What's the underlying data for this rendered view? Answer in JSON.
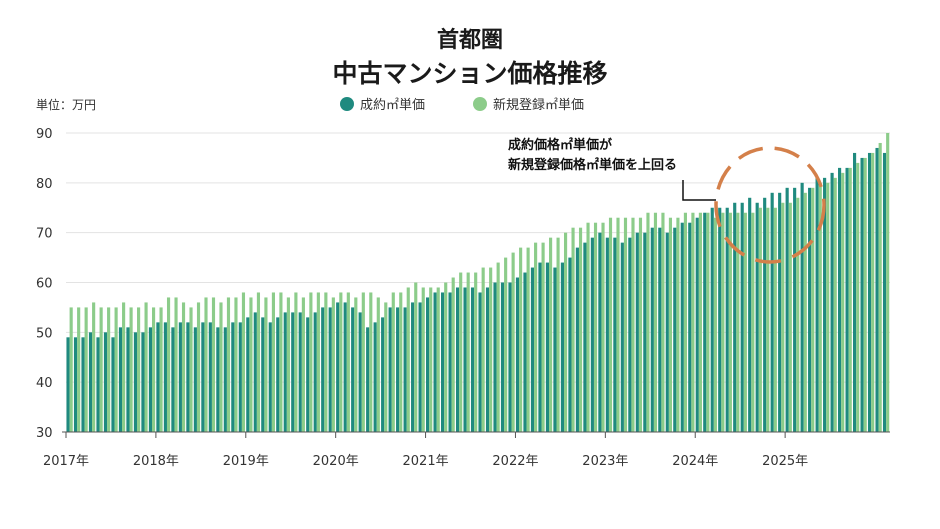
{
  "title_line1": "首都圏",
  "title_line2": "中古マンション価格推移",
  "unit_label": "単位：万円",
  "annotation": {
    "line1": "成約価格㎡単価が",
    "line2": "新規登録価格㎡単価を上回る"
  },
  "colors": {
    "contract": "#1f8a7f",
    "new": "#8ccc8a",
    "highlight": "#d4804a",
    "grid": "#e3e3e3"
  },
  "chart_data": {
    "type": "bar",
    "title": "首都圏 中古マンション価格推移",
    "ylabel": "単位：万円",
    "ylim": [
      30,
      90
    ],
    "yticks": [
      30,
      40,
      50,
      60,
      70,
      80,
      90
    ],
    "xticks": [
      "2017年",
      "2018年",
      "2019年",
      "2020年",
      "2021年",
      "2022年",
      "2023年",
      "2024年",
      "2025年"
    ],
    "x_start": "2017-01",
    "series": [
      {
        "name": "成約㎡単価",
        "values": [
          49,
          49,
          49,
          50,
          49,
          50,
          49,
          51,
          51,
          50,
          50,
          51,
          52,
          52,
          51,
          52,
          52,
          51,
          52,
          52,
          51,
          51,
          52,
          52,
          53,
          54,
          53,
          52,
          53,
          54,
          54,
          54,
          53,
          54,
          55,
          55,
          56,
          56,
          55,
          54,
          51,
          52,
          53,
          55,
          55,
          55,
          56,
          56,
          57,
          58,
          58,
          58,
          59,
          59,
          59,
          58,
          59,
          60,
          60,
          60,
          61,
          62,
          63,
          64,
          64,
          63,
          64,
          65,
          67,
          68,
          69,
          70,
          69,
          69,
          68,
          69,
          70,
          70,
          71,
          71,
          70,
          71,
          72,
          72,
          73,
          74,
          75,
          75,
          75,
          76,
          76,
          77,
          76,
          77,
          78,
          78,
          79,
          79,
          80,
          79,
          81,
          81,
          82,
          83,
          83,
          86,
          85,
          86,
          87,
          86
        ]
      },
      {
        "name": "新規登録㎡単価",
        "values": [
          55,
          55,
          55,
          56,
          55,
          55,
          55,
          56,
          55,
          55,
          56,
          55,
          55,
          57,
          57,
          56,
          55,
          56,
          57,
          57,
          56,
          57,
          57,
          58,
          57,
          58,
          57,
          58,
          58,
          57,
          58,
          57,
          58,
          58,
          58,
          57,
          58,
          58,
          57,
          58,
          58,
          57,
          56,
          58,
          58,
          59,
          60,
          59,
          59,
          59,
          60,
          61,
          62,
          62,
          62,
          63,
          63,
          64,
          65,
          66,
          67,
          67,
          68,
          68,
          69,
          69,
          70,
          71,
          71,
          72,
          72,
          72,
          73,
          73,
          73,
          73,
          73,
          74,
          74,
          74,
          73,
          73,
          74,
          74,
          74,
          74,
          73,
          74,
          74,
          74,
          74,
          74,
          75,
          75,
          75,
          76,
          76,
          77,
          78,
          79,
          80,
          80,
          81,
          82,
          83,
          84,
          85,
          86,
          88,
          90
        ]
      }
    ]
  }
}
